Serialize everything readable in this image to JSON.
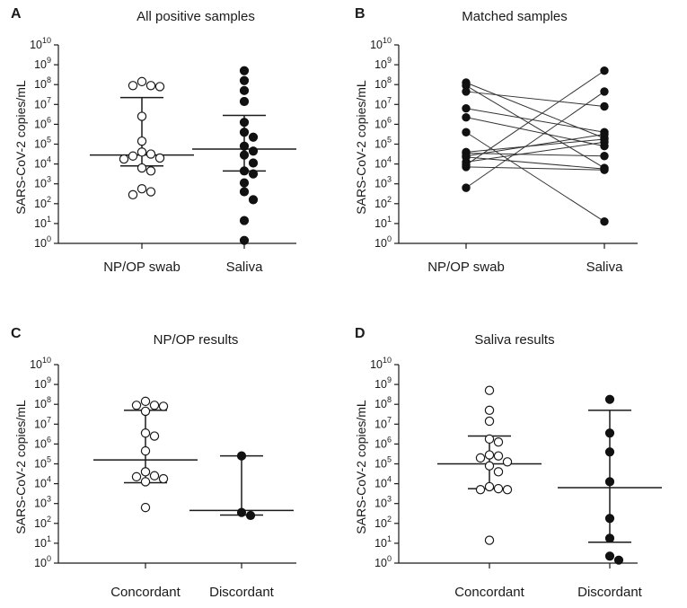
{
  "chart_data": [
    {
      "id": "A",
      "type": "scatter",
      "panel_label": "A",
      "title": "All positive samples",
      "ylabel": "SARS-CoV-2 copies/mL",
      "yscale": "log10",
      "ylim_exp": [
        0,
        10
      ],
      "categories": [
        "NP/OP swab",
        "Saliva"
      ],
      "series": [
        {
          "name": "NP/OP swab",
          "category": 0,
          "marker": "open",
          "log10_values": [
            8.15,
            7.95,
            7.9,
            7.95,
            6.4,
            5.15,
            4.6,
            4.5,
            4.4,
            4.3,
            4.25,
            3.8,
            3.65,
            2.75,
            2.6,
            2.45
          ],
          "median_log10": 4.45,
          "q1_log10": 3.9,
          "q3_log10": 7.35
        },
        {
          "name": "Saliva",
          "category": 1,
          "marker": "filled",
          "log10_values": [
            8.7,
            8.2,
            7.7,
            7.15,
            6.1,
            5.6,
            5.35,
            4.9,
            4.65,
            4.45,
            4.05,
            3.65,
            3.5,
            3.05,
            2.6,
            2.2,
            1.15,
            0.15
          ],
          "median_log10": 4.75,
          "q1_log10": 3.65,
          "q3_log10": 6.45
        }
      ]
    },
    {
      "id": "B",
      "type": "line",
      "panel_label": "B",
      "title": "Matched samples",
      "ylabel": "SARS-CoV-2 copies/mL",
      "yscale": "log10",
      "ylim_exp": [
        0,
        10
      ],
      "categories": [
        "NP/OP swab",
        "Saliva"
      ],
      "marker": "filled",
      "pairs_log10": [
        [
          8.1,
          5.3
        ],
        [
          7.95,
          3.8
        ],
        [
          7.65,
          6.9
        ],
        [
          6.8,
          5.6
        ],
        [
          6.35,
          4.9
        ],
        [
          5.6,
          1.1
        ],
        [
          4.6,
          5.25
        ],
        [
          4.55,
          4.4
        ],
        [
          4.4,
          5.5
        ],
        [
          4.35,
          3.75
        ],
        [
          4.1,
          5.1
        ],
        [
          3.85,
          3.7
        ],
        [
          3.95,
          8.7
        ],
        [
          2.8,
          7.65
        ]
      ]
    },
    {
      "id": "C",
      "type": "scatter",
      "panel_label": "C",
      "title": "NP/OP results",
      "ylabel": "SARS-CoV-2 copies/mL",
      "yscale": "log10",
      "ylim_exp": [
        0,
        10
      ],
      "categories": [
        "Concordant",
        "Discordant"
      ],
      "series": [
        {
          "name": "Concordant",
          "category": 0,
          "marker": "open",
          "log10_values": [
            8.15,
            7.95,
            7.9,
            7.95,
            7.65,
            6.55,
            6.4,
            5.65,
            4.6,
            4.4,
            4.35,
            4.25,
            4.1,
            2.8
          ],
          "median_log10": 5.2,
          "q1_log10": 4.05,
          "q3_log10": 7.7
        },
        {
          "name": "Discordant",
          "category": 1,
          "marker": "filled",
          "log10_values": [
            5.4,
            2.55,
            2.4
          ],
          "median_log10": 2.65,
          "q1_log10": 2.42,
          "q3_log10": 5.4
        }
      ]
    },
    {
      "id": "D",
      "type": "scatter",
      "panel_label": "D",
      "title": "Saliva results",
      "ylabel": "SARS-CoV-2 copies/mL",
      "yscale": "log10",
      "ylim_exp": [
        0,
        10
      ],
      "categories": [
        "Concordant",
        "Discordant"
      ],
      "series": [
        {
          "name": "Concordant",
          "category": 0,
          "marker": "open",
          "log10_values": [
            8.7,
            7.7,
            7.15,
            6.25,
            6.1,
            5.45,
            5.4,
            5.3,
            5.1,
            4.9,
            4.6,
            3.85,
            3.7,
            3.75,
            3.7,
            1.15
          ],
          "median_log10": 5.0,
          "q1_log10": 3.75,
          "q3_log10": 6.4
        },
        {
          "name": "Discordant",
          "category": 1,
          "marker": "filled",
          "log10_values": [
            8.25,
            6.55,
            5.6,
            4.1,
            2.25,
            1.25,
            0.35,
            0.15
          ],
          "median_log10": 3.8,
          "q1_log10": 1.05,
          "q3_log10": 7.7
        }
      ]
    }
  ]
}
